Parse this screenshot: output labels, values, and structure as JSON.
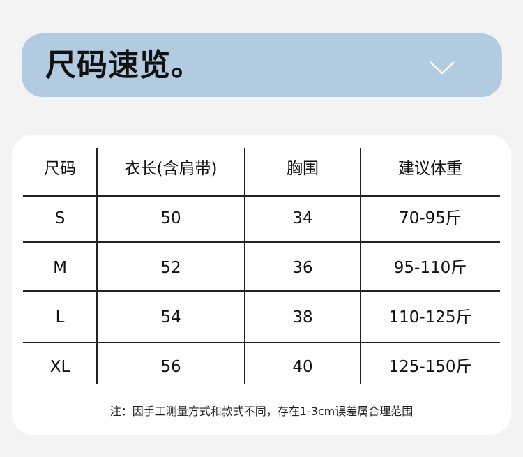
{
  "header": {
    "title": "尺码速览。",
    "toggle_icon": "chevron-down-icon"
  },
  "table": {
    "columns": [
      "尺码",
      "衣长(含肩带)",
      "胸围",
      "建议体重"
    ],
    "rows": [
      [
        "S",
        "50",
        "34",
        "70-95斤"
      ],
      [
        "M",
        "52",
        "36",
        "95-110斤"
      ],
      [
        "L",
        "54",
        "38",
        "110-125斤"
      ],
      [
        "XL",
        "56",
        "40",
        "125-150斤"
      ]
    ]
  },
  "note": "注：因手工测量方式和款式不同，存在1-3cm误差属合理范围",
  "colors": {
    "banner": "#b3cbe1",
    "background": "#f3f3f3",
    "card": "#ffffff"
  }
}
